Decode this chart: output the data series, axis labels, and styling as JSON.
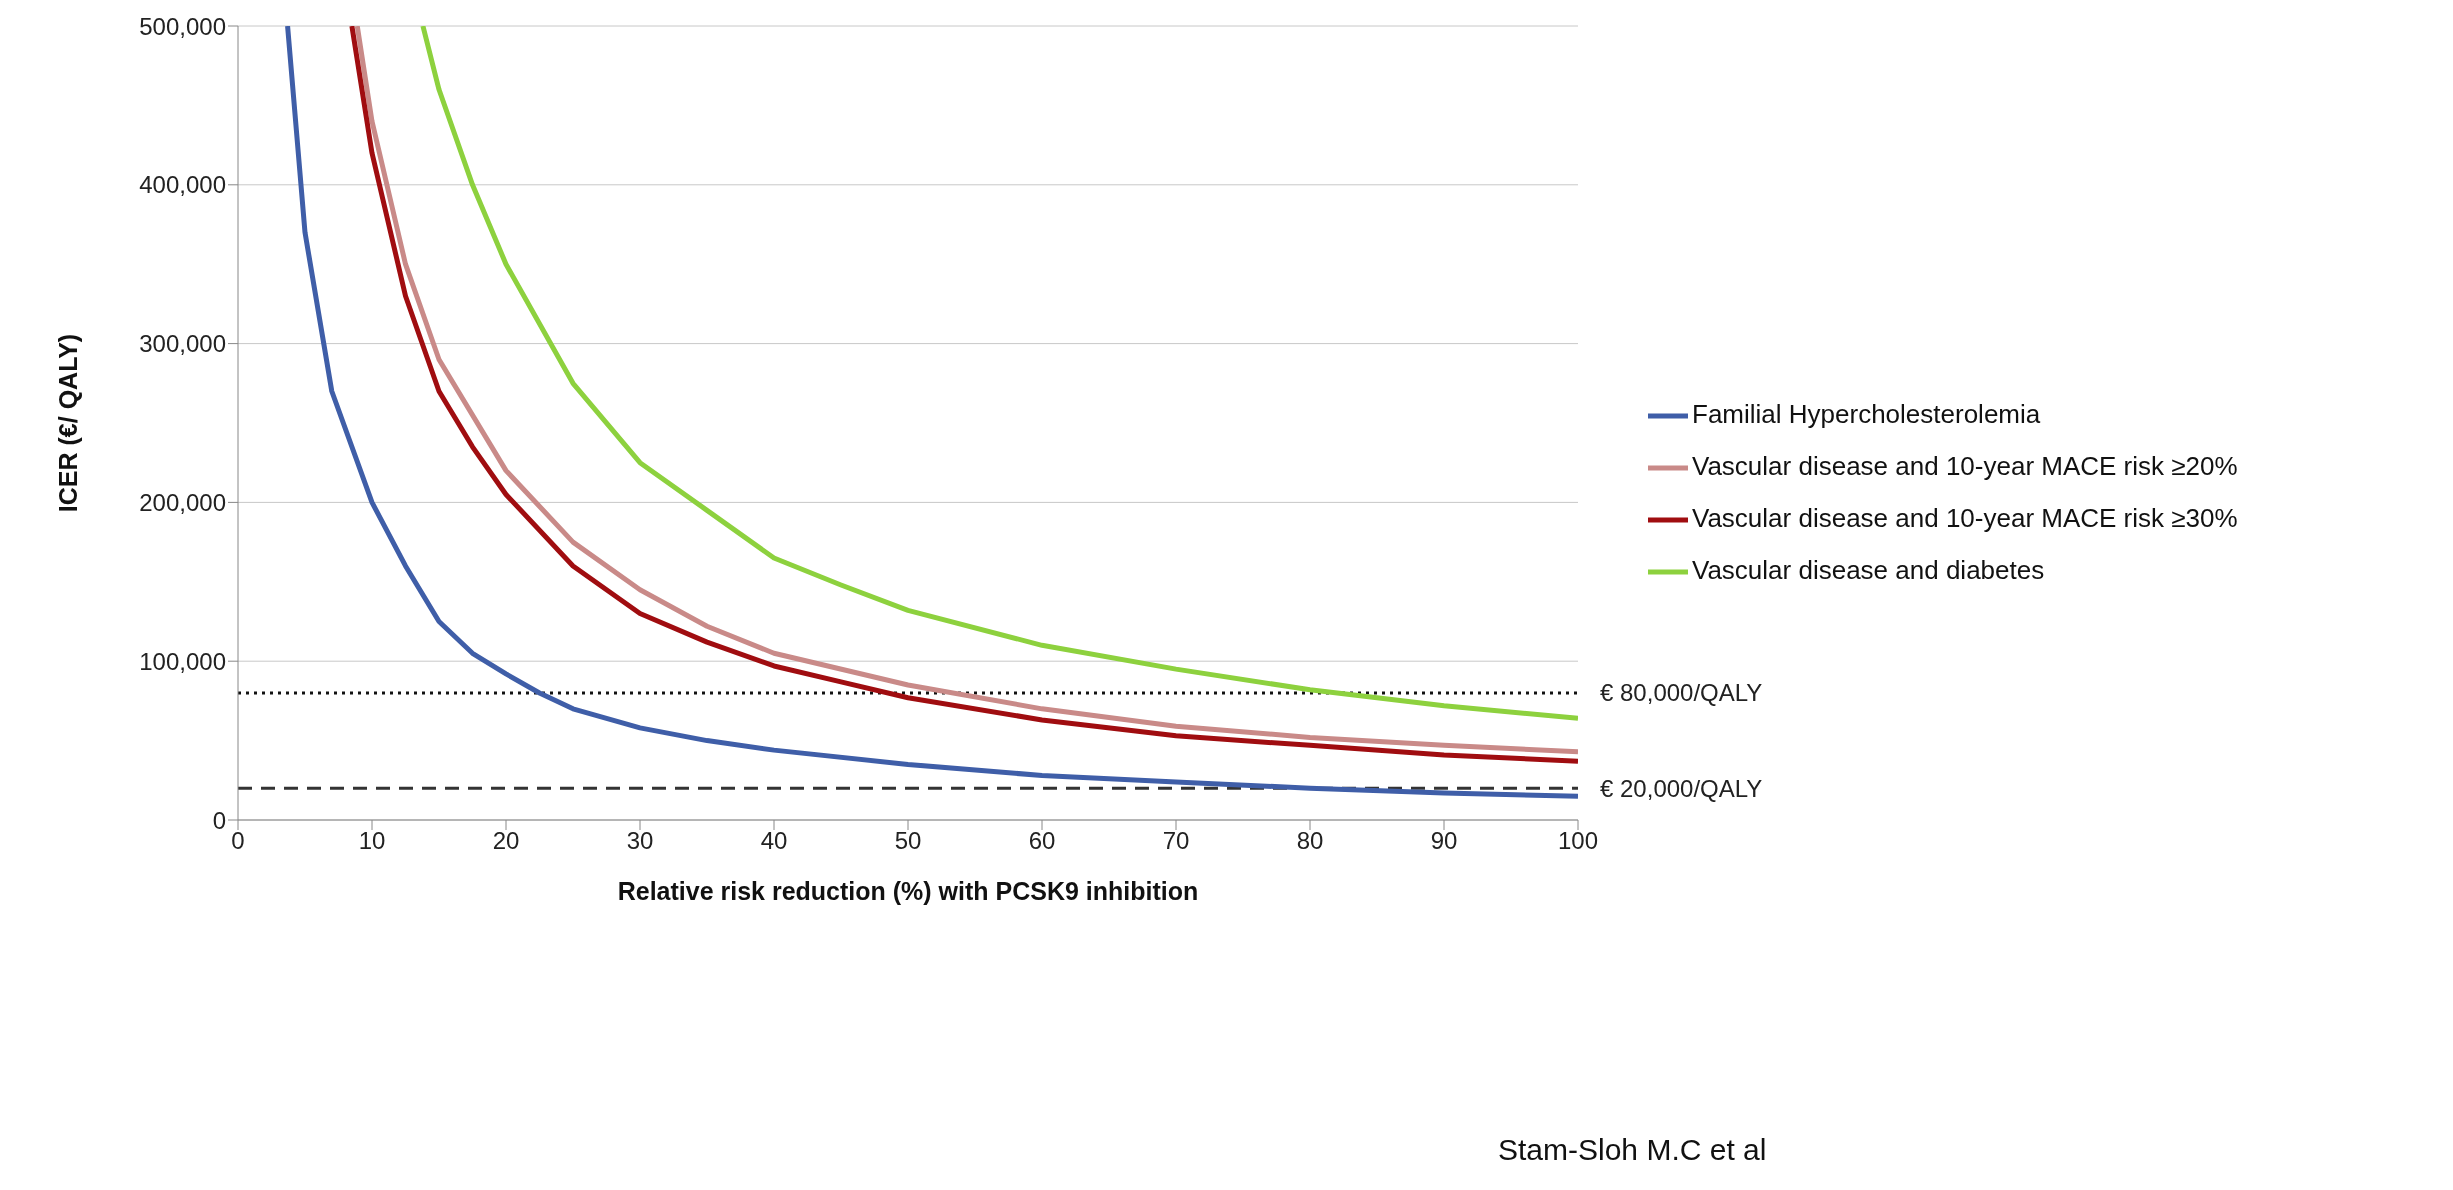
{
  "chart_data": {
    "type": "line",
    "xlabel": "Relative risk reduction (%) with PCSK9 inhibition",
    "ylabel": "ICER (€/ QALY)",
    "xlim": [
      0,
      100
    ],
    "xticks": [
      0,
      10,
      20,
      30,
      40,
      50,
      60,
      70,
      80,
      90,
      100
    ],
    "ylim": [
      0,
      500000
    ],
    "yticks": [
      0,
      {
        "value": 100000,
        "label": "100,000"
      },
      {
        "value": 200000,
        "label": "200,000"
      },
      {
        "value": 300000,
        "label": "300,000"
      },
      {
        "value": 400000,
        "label": "400,000"
      },
      {
        "value": 500000,
        "label": "500,000"
      }
    ],
    "grid": "y",
    "legend": "right",
    "marker": "none",
    "line_style": "solid",
    "series": [
      {
        "name": "Vascular disease and diabetes",
        "color": "#8dd13e",
        "x": [
          13.8,
          15,
          17.5,
          20,
          25,
          30,
          35,
          40,
          45,
          50,
          60,
          70,
          80,
          90,
          100
        ],
        "values": [
          500000,
          460000,
          400000,
          350000,
          275000,
          225000,
          195000,
          165000,
          148000,
          132000,
          110000,
          95000,
          82000,
          72000,
          64000
        ]
      },
      {
        "name": "Vascular disease and 10-year MACE risk ≥20%",
        "color": "#c98a88",
        "x": [
          8.9,
          10,
          12.5,
          15,
          20,
          25,
          30,
          35,
          40,
          50,
          60,
          70,
          80,
          90,
          100
        ],
        "values": [
          500000,
          440000,
          350000,
          290000,
          220000,
          175000,
          145000,
          122000,
          105000,
          85000,
          70000,
          59000,
          52000,
          47000,
          43000
        ]
      },
      {
        "name": "Vascular disease and 10-year MACE risk ≥30%",
        "color": "#a00d10",
        "x": [
          8.5,
          10,
          12.5,
          15,
          17.5,
          20,
          25,
          30,
          35,
          40,
          45,
          50,
          60,
          70,
          80,
          90,
          100
        ],
        "values": [
          500000,
          420000,
          330000,
          270000,
          235000,
          205000,
          160000,
          130000,
          112000,
          97000,
          87000,
          77000,
          63000,
          53000,
          47000,
          41000,
          37000
        ]
      },
      {
        "name": "Familial Hypercholesterolemia",
        "color": "#3f5ea8",
        "x": [
          3.7,
          5,
          7,
          10,
          12.5,
          15,
          17.5,
          20,
          22.5,
          25,
          30,
          35,
          40,
          50,
          60,
          70,
          80,
          90,
          100
        ],
        "values": [
          500000,
          370000,
          270000,
          200000,
          160000,
          125000,
          105000,
          92000,
          80000,
          70000,
          58000,
          50000,
          44000,
          35000,
          28000,
          24000,
          20000,
          17000,
          15000
        ]
      }
    ],
    "ref_lines": [
      {
        "axis": "y",
        "value": 80000,
        "label": "€ 80,000/QALY",
        "color": "#111111",
        "line_style": "dotted"
      },
      {
        "axis": "y",
        "value": 20000,
        "label": "€ 20,000/QALY",
        "color": "#333333",
        "line_style": "dashed"
      }
    ],
    "annotations": [
      "Stam-Sloh M.C et al"
    ]
  }
}
